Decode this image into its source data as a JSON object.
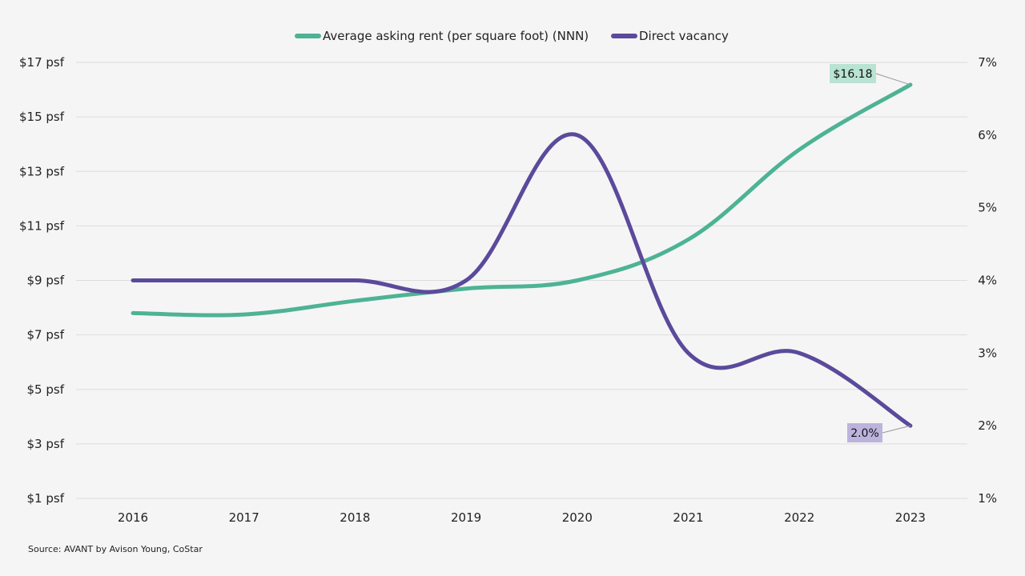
{
  "chart_data": {
    "type": "line",
    "categories": [
      "2016",
      "2017",
      "2018",
      "2019",
      "2020",
      "2021",
      "2022",
      "2023"
    ],
    "series": [
      {
        "name": "Average asking rent (per square foot) (NNN)",
        "axis": "left",
        "color": "#4db394",
        "values": [
          7.8,
          7.75,
          8.25,
          8.7,
          9.0,
          10.5,
          13.8,
          16.18
        ]
      },
      {
        "name": "Direct vacancy",
        "axis": "right",
        "color": "#5b4a9b",
        "values": [
          4.0,
          4.0,
          4.0,
          4.0,
          6.0,
          3.0,
          3.0,
          2.0
        ]
      }
    ],
    "y_left": {
      "min": 1,
      "max": 17,
      "ticks": [
        "$17 psf",
        "$15 psf",
        "$13 psf",
        "$11 psf",
        "$9 psf",
        "$7 psf",
        "$5 psf",
        "$3 psf",
        "$1 psf"
      ],
      "tick_values": [
        17,
        15,
        13,
        11,
        9,
        7,
        5,
        3,
        1
      ]
    },
    "y_right": {
      "min": 1,
      "max": 7,
      "ticks": [
        "7%",
        "6%",
        "5%",
        "4%",
        "3%",
        "2%",
        "1%"
      ],
      "tick_values": [
        7,
        6,
        5,
        4,
        3,
        2,
        1
      ]
    },
    "annotations": [
      {
        "series": 0,
        "index": 7,
        "label": "$16.18",
        "bg": "#b9e3d3"
      },
      {
        "series": 1,
        "index": 7,
        "label": "2.0%",
        "bg": "#bcb4dd"
      }
    ],
    "legend_position": "top-center",
    "grid": true,
    "source": "Source: AVANT by Avison Young, CoStar"
  }
}
